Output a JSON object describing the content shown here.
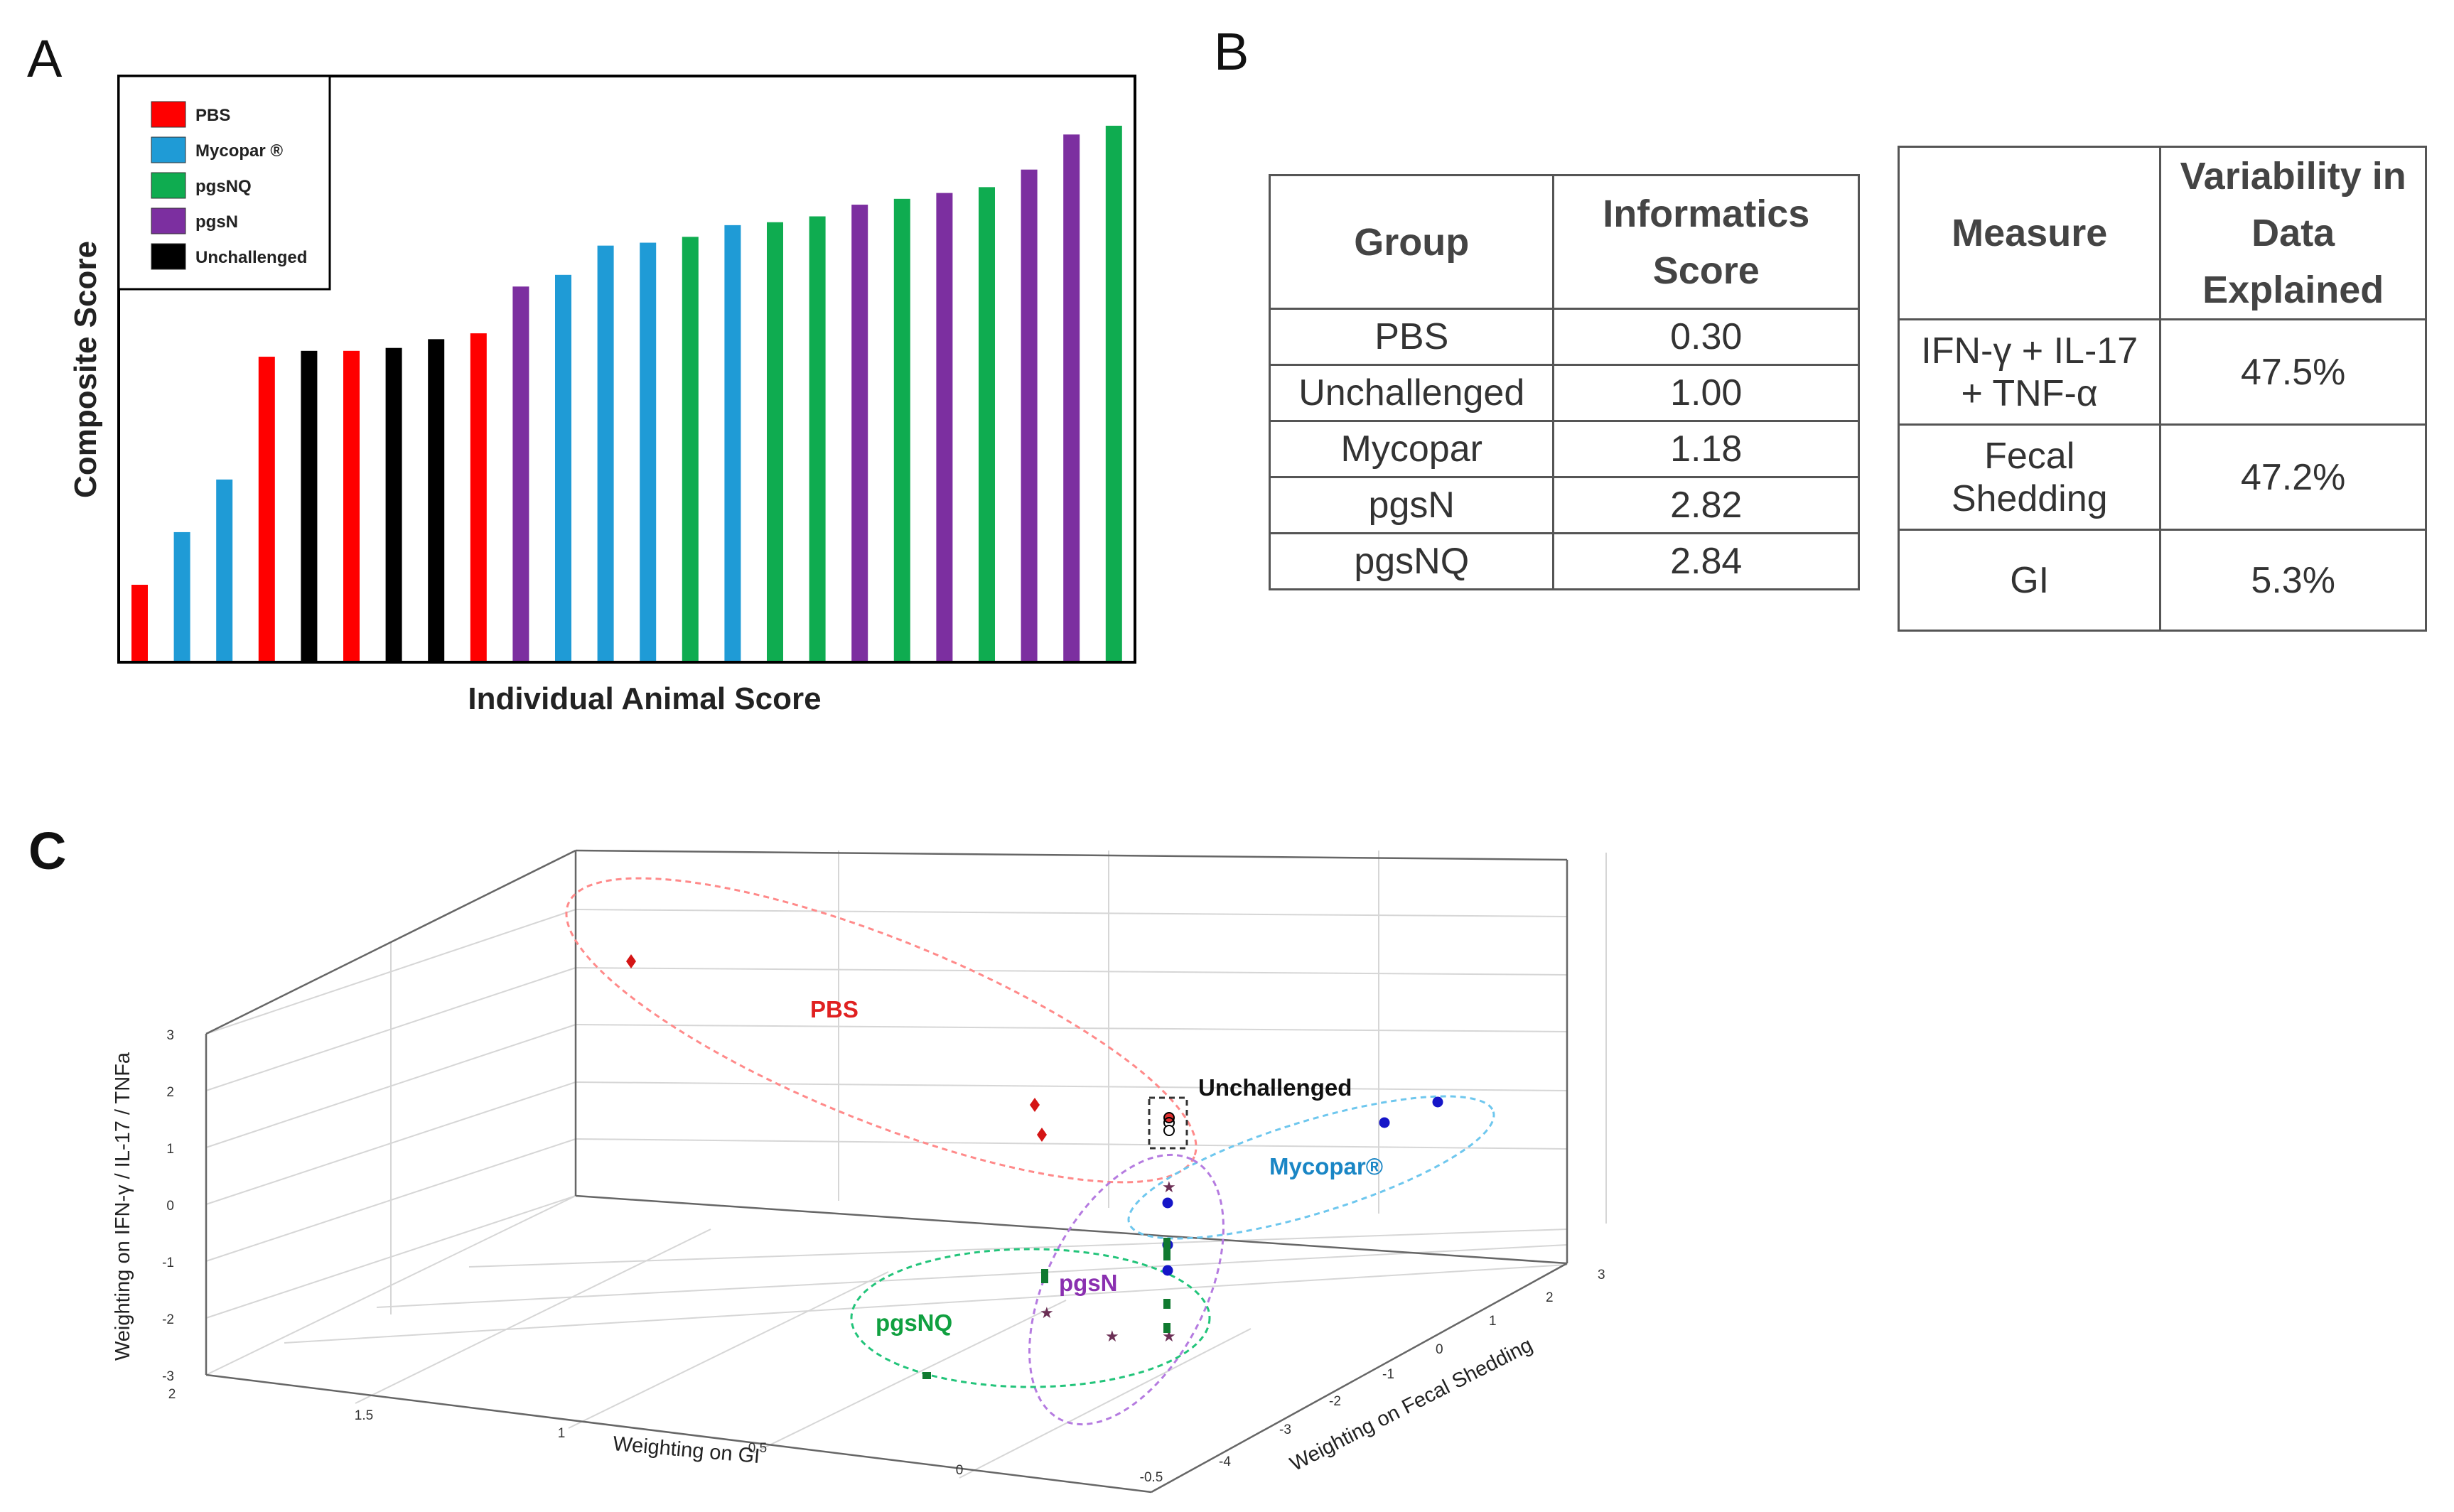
{
  "panels": {
    "a": "A",
    "b": "B",
    "c": "C"
  },
  "colors": {
    "PBS": "#ff0000",
    "Mycopar": "#1f9bd6",
    "pgsNQ": "#0fac50",
    "pgsN": "#7c2fa0",
    "Unchallenged": "#000000"
  },
  "chart_data": [
    {
      "type": "bar",
      "xlabel": "Individual Animal Score",
      "ylabel": "Composite Score",
      "legend": {
        "placement": "top-left",
        "entries": [
          {
            "key": "PBS",
            "label": "PBS"
          },
          {
            "key": "Mycopar",
            "label": "Mycopar ®"
          },
          {
            "key": "pgsNQ",
            "label": "pgsNQ"
          },
          {
            "key": "pgsN",
            "label": "pgsN"
          },
          {
            "key": "Unchallenged",
            "label": "Unchallenged"
          }
        ]
      },
      "ylim": [
        0,
        100
      ],
      "bars": [
        {
          "group": "PBS",
          "value": 13
        },
        {
          "group": "Mycopar",
          "value": 22
        },
        {
          "group": "Mycopar",
          "value": 31
        },
        {
          "group": "PBS",
          "value": 52
        },
        {
          "group": "Unchallenged",
          "value": 53
        },
        {
          "group": "PBS",
          "value": 53
        },
        {
          "group": "Unchallenged",
          "value": 53.5
        },
        {
          "group": "Unchallenged",
          "value": 55
        },
        {
          "group": "PBS",
          "value": 56
        },
        {
          "group": "pgsN",
          "value": 64
        },
        {
          "group": "Mycopar",
          "value": 66
        },
        {
          "group": "Mycopar",
          "value": 71
        },
        {
          "group": "Mycopar",
          "value": 71.5
        },
        {
          "group": "pgsNQ",
          "value": 72.5
        },
        {
          "group": "Mycopar",
          "value": 74.5
        },
        {
          "group": "pgsNQ",
          "value": 75
        },
        {
          "group": "pgsNQ",
          "value": 76
        },
        {
          "group": "pgsN",
          "value": 78
        },
        {
          "group": "pgsNQ",
          "value": 79
        },
        {
          "group": "pgsN",
          "value": 80
        },
        {
          "group": "pgsNQ",
          "value": 81
        },
        {
          "group": "pgsN",
          "value": 84
        },
        {
          "group": "pgsN",
          "value": 90
        },
        {
          "group": "pgsNQ",
          "value": 91.5
        }
      ]
    },
    {
      "type": "table",
      "headers": [
        "Group",
        "Informatics Score"
      ],
      "rows": [
        [
          "PBS",
          "0.30"
        ],
        [
          "Unchallenged",
          "1.00"
        ],
        [
          "Mycopar",
          "1.18"
        ],
        [
          "pgsN",
          "2.82"
        ],
        [
          "pgsNQ",
          "2.84"
        ]
      ]
    },
    {
      "type": "table",
      "headers": [
        "Measure",
        "Variability in Data Explained"
      ],
      "rows": [
        [
          "IFN-γ + IL-17 + TNF-α",
          "47.5%"
        ],
        [
          "Fecal Shedding",
          "47.2%"
        ],
        [
          "GI",
          "5.3%"
        ]
      ]
    },
    {
      "type": "scatter",
      "xlabel": "Weighting on GI",
      "ylabel": "Weighting on Fecal Shedding",
      "zlabel": "Weighting on IFN-γ / IL-17 / TNFa",
      "xlim": [
        2,
        -0.5
      ],
      "ylim": [
        -4,
        3
      ],
      "zlim": [
        -3,
        3
      ],
      "x_ticks": [
        "2",
        "1.5",
        "1",
        "0.5",
        "0",
        "-0.5"
      ],
      "y_ticks": [
        "-4",
        "-3",
        "-2",
        "-1",
        "0",
        "1",
        "2",
        "3"
      ],
      "z_ticks": [
        "3",
        "2",
        "1",
        "0",
        "-1",
        "-2",
        "-3"
      ],
      "grid": true,
      "series": [
        {
          "name": "PBS",
          "marker": "diamond"
        },
        {
          "name": "Unchallenged",
          "marker": "circle-open"
        },
        {
          "name": "Mycopar®",
          "marker": "circle"
        },
        {
          "name": "pgsN",
          "marker": "star"
        },
        {
          "name": "pgsNQ",
          "marker": "square"
        }
      ]
    }
  ]
}
